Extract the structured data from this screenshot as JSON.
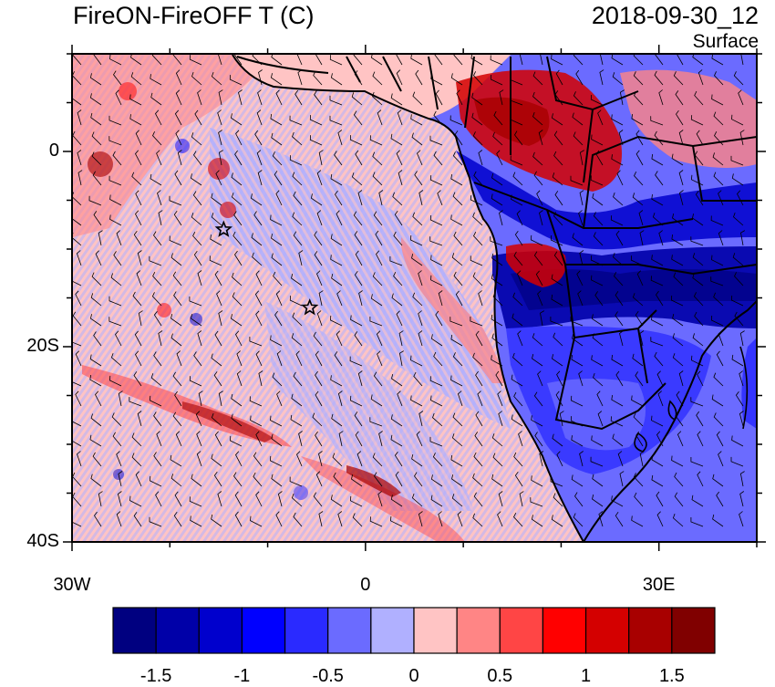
{
  "title": {
    "left": "FireON-FireOFF T (C)",
    "right": "2018-09-30_12",
    "level": "Surface"
  },
  "axes": {
    "lat_ticks": [
      {
        "value": 0,
        "label": "0"
      },
      {
        "value": -20,
        "label": "20S"
      },
      {
        "value": -40,
        "label": "40S"
      }
    ],
    "lon_ticks": [
      {
        "value": -30,
        "label": "30W"
      },
      {
        "value": 0,
        "label": "0"
      },
      {
        "value": 30,
        "label": "30E"
      }
    ],
    "lon_range": [
      -30,
      40
    ],
    "lat_range": [
      -40,
      10
    ]
  },
  "markers": [
    {
      "name": "star-marker-1",
      "lon": -14.5,
      "lat": -8
    },
    {
      "name": "star-marker-2",
      "lon": -5.7,
      "lat": -16
    }
  ],
  "colorbar": {
    "colors": [
      "#000080",
      "#0000a8",
      "#0000cd",
      "#0000ff",
      "#2a2aff",
      "#6b6bff",
      "#b0b0ff",
      "#ffc4c4",
      "#ff8585",
      "#ff4545",
      "#ff0000",
      "#d40000",
      "#a80000",
      "#800000"
    ],
    "labels": [
      {
        "text": "-1.5",
        "pos": 1
      },
      {
        "text": "-1",
        "pos": 3
      },
      {
        "text": "-0.5",
        "pos": 5
      },
      {
        "text": "0",
        "pos": 7
      },
      {
        "text": "0.5",
        "pos": 9
      },
      {
        "text": "1",
        "pos": 11
      },
      {
        "text": "1.5",
        "pos": 13
      }
    ]
  }
}
